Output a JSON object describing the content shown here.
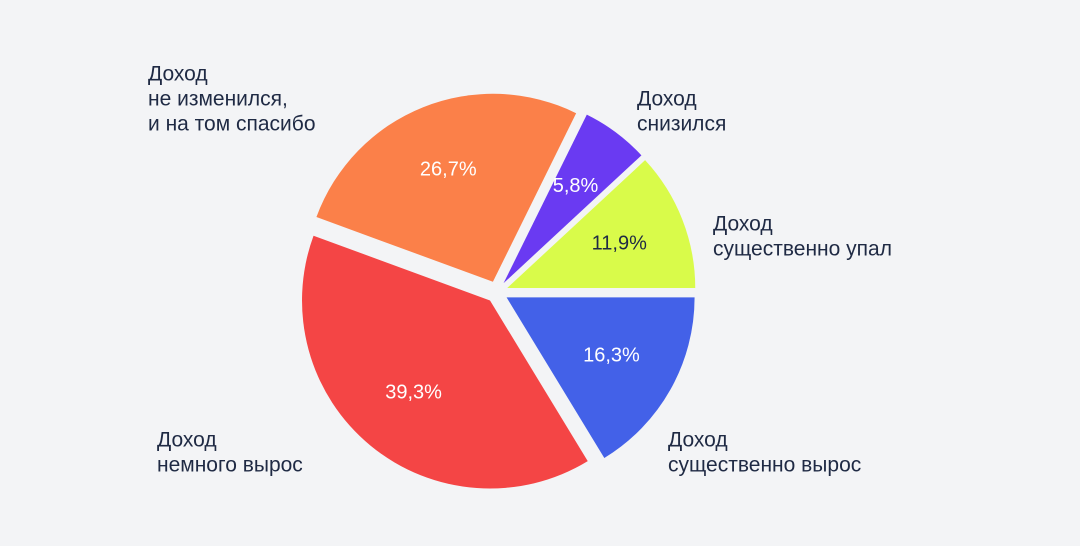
{
  "chart_data": {
    "type": "pie",
    "categories": [
      [
        "Доход",
        "существенно вырос"
      ],
      [
        "Доход",
        "немного вырос"
      ],
      [
        "Доход",
        "не изменился,",
        "и на том спасибо"
      ],
      [
        "Доход",
        "снизился"
      ],
      [
        "Доход",
        "существенно упал"
      ]
    ],
    "values": [
      16.3,
      39.3,
      26.7,
      5.8,
      11.9
    ],
    "value_labels": [
      "16,3%",
      "39,3%",
      "26,7%",
      "5,8%",
      "11,9%"
    ],
    "colors": [
      "#4361e8",
      "#f44545",
      "#fb8049",
      "#6a3af2",
      "#d9fb4a"
    ]
  }
}
